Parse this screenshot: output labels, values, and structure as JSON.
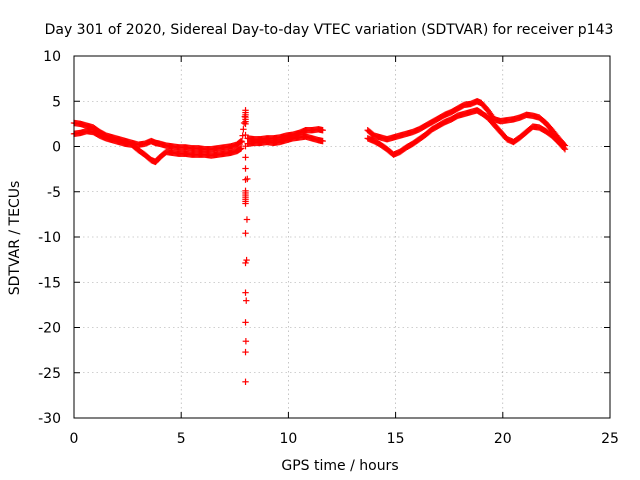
{
  "chart_data": {
    "type": "scatter",
    "title": "Day 301 of 2020, Sidereal Day-to-day VTEC variation (SDTVAR) for receiver p143",
    "xlabel": "GPS time / hours",
    "ylabel": "SDTVAR / TECUs",
    "xlim": [
      0,
      25
    ],
    "ylim": [
      -30,
      10
    ],
    "xticks": [
      0,
      5,
      10,
      15,
      20,
      25
    ],
    "yticks": [
      10,
      5,
      0,
      -5,
      -10,
      -15,
      -20,
      -25,
      -30
    ],
    "xtick_labels": [
      "0",
      "5",
      "10",
      "15",
      "20",
      "25"
    ],
    "ytick_labels": [
      "10",
      "5",
      "0",
      "-5",
      "-10",
      "-15",
      "-20",
      "-25",
      "-30"
    ],
    "grid": true,
    "marker": "plus",
    "color": "#ff0000",
    "series": [
      {
        "name": "SDTVAR",
        "x": [
          0.0,
          0.3,
          0.6,
          0.9,
          1.2,
          1.5,
          1.8,
          2.1,
          2.4,
          2.7,
          3.0,
          3.3,
          3.6,
          3.8,
          4.0,
          4.3,
          4.6,
          4.9,
          5.2,
          5.5,
          5.8,
          6.1,
          6.4,
          6.7,
          7.0,
          7.3,
          7.6,
          7.8,
          0.0,
          0.3,
          0.6,
          0.9,
          1.2,
          1.5,
          1.8,
          2.1,
          2.4,
          2.7,
          3.0,
          3.3,
          3.6,
          3.8,
          4.0,
          4.3,
          4.6,
          4.9,
          5.2,
          5.5,
          5.8,
          6.1,
          6.4,
          6.7,
          7.0,
          7.3,
          7.6,
          7.8,
          8.0,
          8.0,
          8.0,
          8.0,
          8.0,
          8.1,
          8.4,
          8.7,
          9.0,
          9.3,
          9.6,
          9.9,
          10.2,
          10.5,
          10.8,
          11.1,
          11.4,
          11.6,
          8.1,
          8.4,
          8.7,
          9.0,
          9.3,
          9.6,
          9.9,
          10.2,
          10.5,
          10.8,
          11.1,
          11.4,
          11.6,
          13.7,
          14.0,
          14.3,
          14.6,
          14.9,
          15.2,
          15.5,
          15.8,
          16.1,
          16.4,
          16.7,
          17.0,
          17.3,
          17.6,
          17.9,
          18.2,
          18.5,
          18.8,
          19.0,
          19.3,
          19.6,
          19.9,
          20.2,
          20.5,
          20.8,
          21.1,
          21.4,
          21.7,
          22.0,
          22.3,
          22.6,
          22.9,
          13.7,
          14.0,
          14.3,
          14.6,
          14.9,
          15.2,
          15.5,
          15.8,
          16.1,
          16.4,
          16.7,
          17.0,
          17.3,
          17.6,
          17.9,
          18.2,
          18.5,
          18.8,
          19.0,
          19.3,
          19.6,
          19.9,
          20.2,
          20.5,
          20.8,
          21.1,
          21.4,
          21.7,
          22.0,
          22.3,
          22.6,
          22.9
        ],
        "y": [
          2.6,
          2.5,
          2.3,
          2.1,
          1.6,
          1.2,
          1.0,
          0.8,
          0.6,
          0.4,
          0.2,
          0.3,
          0.6,
          0.4,
          0.3,
          0.1,
          0.0,
          -0.1,
          -0.1,
          -0.2,
          -0.2,
          -0.3,
          -0.3,
          -0.2,
          -0.1,
          0.0,
          0.2,
          0.6,
          1.4,
          1.5,
          1.7,
          1.6,
          1.2,
          0.9,
          0.7,
          0.5,
          0.3,
          0.2,
          -0.4,
          -0.9,
          -1.5,
          -1.7,
          -1.2,
          -0.6,
          -0.7,
          -0.8,
          -0.8,
          -0.9,
          -0.9,
          -0.9,
          -1.0,
          -0.9,
          -0.8,
          -0.7,
          -0.5,
          -0.2,
          4.0,
          2.5,
          -4.9,
          -6.3,
          -26.0,
          0.9,
          0.8,
          0.8,
          0.9,
          0.9,
          1.0,
          1.2,
          1.3,
          1.5,
          1.8,
          1.8,
          1.9,
          1.8,
          0.3,
          0.4,
          0.4,
          0.5,
          0.4,
          0.5,
          0.7,
          0.9,
          1.0,
          1.1,
          0.9,
          0.7,
          0.6,
          1.8,
          1.2,
          1.0,
          0.8,
          1.0,
          1.2,
          1.4,
          1.6,
          1.9,
          2.3,
          2.7,
          3.1,
          3.5,
          3.8,
          4.2,
          4.6,
          4.7,
          5.0,
          4.8,
          4.0,
          3.0,
          2.8,
          2.9,
          3.0,
          3.2,
          3.5,
          3.4,
          3.2,
          2.6,
          1.8,
          0.9,
          0.1,
          0.9,
          0.6,
          0.2,
          -0.3,
          -0.9,
          -0.6,
          -0.1,
          0.3,
          0.8,
          1.3,
          1.9,
          2.3,
          2.7,
          3.0,
          3.4,
          3.6,
          3.8,
          4.0,
          3.7,
          3.2,
          2.4,
          1.6,
          0.8,
          0.5,
          1.0,
          1.6,
          2.2,
          2.1,
          1.7,
          1.2,
          0.5,
          -0.3
        ]
      }
    ]
  }
}
